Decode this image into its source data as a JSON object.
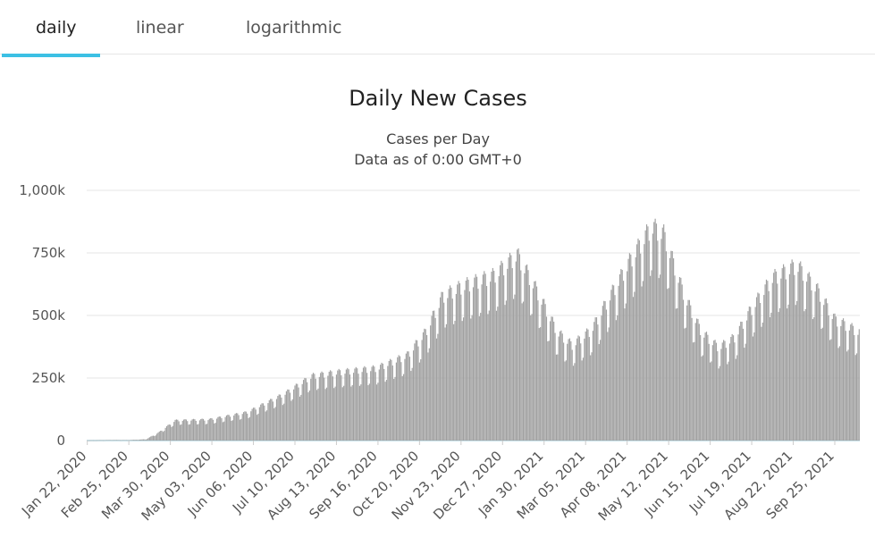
{
  "tabs": [
    {
      "label": "daily",
      "active": true
    },
    {
      "label": "linear",
      "active": false
    },
    {
      "label": "logarithmic",
      "active": false
    }
  ],
  "colors": {
    "tab_accent": "#3cc0e4",
    "bar": "#a0a0a0",
    "bar_edge": "#888888",
    "baseline": "#b9d9e3"
  },
  "chart_data": {
    "type": "bar",
    "title": "Daily New Cases",
    "subtitle_lines": [
      "Cases per Day",
      "Data as of 0:00 GMT+0"
    ],
    "xlabel": "",
    "ylabel": "",
    "ylim": [
      0,
      1000000
    ],
    "yticks": [
      0,
      250000,
      500000,
      750000,
      1000000
    ],
    "ytick_labels": [
      "0",
      "250k",
      "500k",
      "750k",
      "1,000k"
    ],
    "grid": true,
    "x_start": "2020-01-22",
    "x_end": "2021-10-15",
    "x_tick_labels": [
      "Jan 22, 2020",
      "Feb 25, 2020",
      "Mar 30, 2020",
      "May 03, 2020",
      "Jun 06, 2020",
      "Jul 10, 2020",
      "Aug 13, 2020",
      "Sep 16, 2020",
      "Oct 20, 2020",
      "Nov 23, 2020",
      "Dec 27, 2020",
      "Jan 30, 2021",
      "Mar 05, 2021",
      "Apr 08, 2021",
      "May 12, 2021",
      "Jun 15, 2021",
      "Jul 19, 2021",
      "Aug 22, 2021",
      "Sep 25, 2021"
    ],
    "weekly_pattern": [
      0.82,
      1.0,
      1.06,
      1.08,
      1.06,
      0.98,
      0.8
    ],
    "trend": [
      {
        "date": "2020-01-22",
        "value": 600
      },
      {
        "date": "2020-02-12",
        "value": 2000
      },
      {
        "date": "2020-02-24",
        "value": 1500
      },
      {
        "date": "2020-03-10",
        "value": 5000
      },
      {
        "date": "2020-03-20",
        "value": 30000
      },
      {
        "date": "2020-04-03",
        "value": 78000
      },
      {
        "date": "2020-05-01",
        "value": 82000
      },
      {
        "date": "2020-06-01",
        "value": 110000
      },
      {
        "date": "2020-07-01",
        "value": 180000
      },
      {
        "date": "2020-07-24",
        "value": 250000
      },
      {
        "date": "2020-08-15",
        "value": 265000
      },
      {
        "date": "2020-09-15",
        "value": 280000
      },
      {
        "date": "2020-10-10",
        "value": 330000
      },
      {
        "date": "2020-10-25",
        "value": 420000
      },
      {
        "date": "2020-11-08",
        "value": 560000
      },
      {
        "date": "2020-11-25",
        "value": 600000
      },
      {
        "date": "2020-12-20",
        "value": 640000
      },
      {
        "date": "2021-01-08",
        "value": 720000
      },
      {
        "date": "2021-01-22",
        "value": 600000
      },
      {
        "date": "2021-02-10",
        "value": 420000
      },
      {
        "date": "2021-02-22",
        "value": 370000
      },
      {
        "date": "2021-03-10",
        "value": 430000
      },
      {
        "date": "2021-03-25",
        "value": 560000
      },
      {
        "date": "2021-04-12",
        "value": 710000
      },
      {
        "date": "2021-04-28",
        "value": 830000
      },
      {
        "date": "2021-05-08",
        "value": 800000
      },
      {
        "date": "2021-05-25",
        "value": 560000
      },
      {
        "date": "2021-06-08",
        "value": 420000
      },
      {
        "date": "2021-06-22",
        "value": 360000
      },
      {
        "date": "2021-07-05",
        "value": 400000
      },
      {
        "date": "2021-07-20",
        "value": 520000
      },
      {
        "date": "2021-08-05",
        "value": 630000
      },
      {
        "date": "2021-08-25",
        "value": 680000
      },
      {
        "date": "2021-09-10",
        "value": 590000
      },
      {
        "date": "2021-09-25",
        "value": 470000
      },
      {
        "date": "2021-10-15",
        "value": 420000
      }
    ]
  }
}
